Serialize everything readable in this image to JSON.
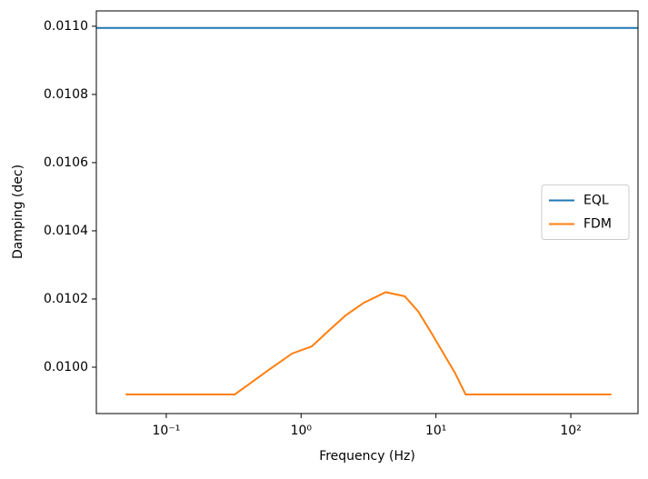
{
  "chart_data": {
    "type": "line",
    "xlabel": "Frequency (Hz)",
    "ylabel": "Damping (dec)",
    "xscale": "log",
    "xlim": [
      0.0303,
      315
    ],
    "ylim": [
      0.009864,
      0.011045
    ],
    "xticks": [
      {
        "value": 0.1,
        "label": "10⁻¹"
      },
      {
        "value": 1,
        "label": "10⁰"
      },
      {
        "value": 10,
        "label": "10¹"
      },
      {
        "value": 100,
        "label": "10²"
      }
    ],
    "yticks": [
      {
        "value": 0.01,
        "label": "0.0100"
      },
      {
        "value": 0.0102,
        "label": "0.0102"
      },
      {
        "value": 0.0104,
        "label": "0.0104"
      },
      {
        "value": 0.0106,
        "label": "0.0106"
      },
      {
        "value": 0.0108,
        "label": "0.0108"
      },
      {
        "value": 0.011,
        "label": "0.0110"
      }
    ],
    "legend": "center right",
    "series": [
      {
        "name": "EQL",
        "color": "#1f77b4",
        "x": [
          0.0303,
          315
        ],
        "values": [
          0.010995,
          0.010995
        ]
      },
      {
        "name": "FDM",
        "color": "#ff7f0e",
        "x": [
          0.05,
          0.322,
          0.6,
          0.857,
          1.2,
          1.57,
          2.14,
          2.92,
          4.24,
          5.87,
          7.4,
          9.4,
          11.5,
          13.8,
          16.6,
          200
        ],
        "values": [
          0.00992,
          0.00992,
          0.009997,
          0.01004,
          0.010061,
          0.010104,
          0.010152,
          0.010189,
          0.01022,
          0.010208,
          0.010163,
          0.010096,
          0.010037,
          0.009984,
          0.00992,
          0.00992
        ]
      }
    ]
  }
}
